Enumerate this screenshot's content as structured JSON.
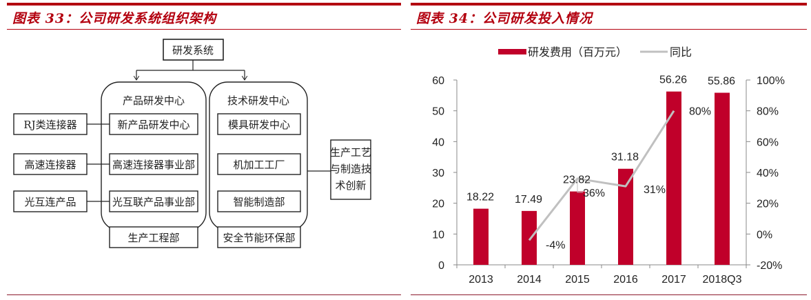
{
  "left_panel": {
    "title": "图表 33：公司研发系统组织架构",
    "org": {
      "root": "研发系统",
      "groups": [
        {
          "name": "产品研发中心",
          "units": [
            "新产品研发中心",
            "高速连接器事业部",
            "光互联产品事业部",
            "生产工程部"
          ]
        },
        {
          "name": "技术研发中心",
          "units": [
            "模具研发中心",
            "机加工工厂",
            "智能制造部",
            "安全节能环保部"
          ]
        }
      ],
      "products": [
        "RJ类连接器",
        "高速连接器",
        "光互连产品"
      ],
      "side_box": [
        "生产工艺",
        "与制造技",
        "术创新"
      ]
    }
  },
  "right_panel": {
    "title": "图表 34：公司研发投入情况",
    "legend": {
      "bar_label": "研发费用（百万元）",
      "line_label": "同比"
    },
    "colors": {
      "bar": "#c0002a",
      "line": "#c0c0c0",
      "axis": "#888888",
      "text": "#222222"
    }
  },
  "chart_data": {
    "type": "bar",
    "title": "公司研发投入情况",
    "categories": [
      "2013",
      "2014",
      "2015",
      "2016",
      "2017",
      "2018Q3"
    ],
    "series": [
      {
        "name": "研发费用（百万元）",
        "type": "bar",
        "axis": "left",
        "values": [
          18.22,
          17.49,
          23.82,
          31.18,
          56.26,
          55.86
        ],
        "labels": [
          "18.22",
          "17.49",
          "23.82",
          "31.18",
          "56.26",
          "55.86"
        ]
      },
      {
        "name": "同比",
        "type": "line",
        "axis": "right",
        "values": [
          null,
          -4,
          36,
          31,
          80,
          null
        ],
        "labels": [
          "",
          "-4%",
          "36%",
          "31%",
          "80%",
          ""
        ]
      }
    ],
    "left_axis": {
      "ylim": [
        0,
        60
      ],
      "ticks": [
        "0",
        "10",
        "20",
        "30",
        "40",
        "50",
        "60"
      ]
    },
    "right_axis": {
      "ylim": [
        -20,
        100
      ],
      "ticks": [
        "-20%",
        "0%",
        "20%",
        "40%",
        "60%",
        "80%",
        "100%"
      ]
    },
    "xlabel": "",
    "ylabel": "",
    "grid": false,
    "legend_position": "top"
  }
}
